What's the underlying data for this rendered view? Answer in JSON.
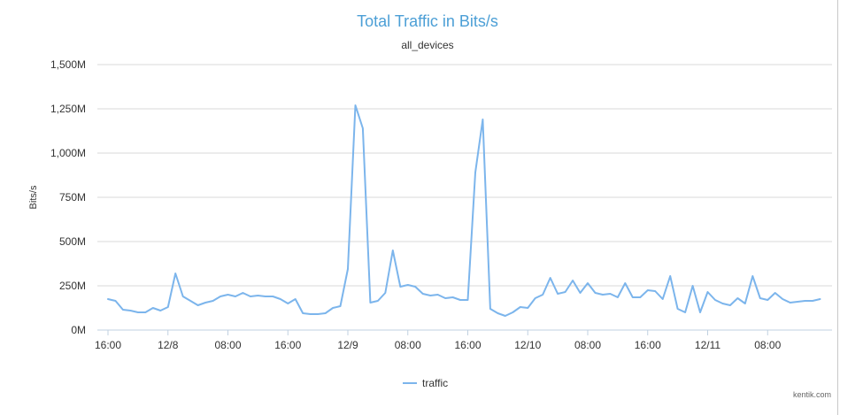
{
  "chart_data": {
    "type": "line",
    "title": "Total Traffic in Bits/s",
    "subtitle": "all_devices",
    "xlabel": "",
    "ylabel": "Bits/s",
    "ylim": [
      0,
      1500
    ],
    "yticks": [
      0,
      250,
      500,
      750,
      1000,
      1250,
      1500
    ],
    "ytick_labels": [
      "0M",
      "250M",
      "500M",
      "750M",
      "1,000M",
      "1,250M",
      "1,500M"
    ],
    "xlim": [
      16,
      112
    ],
    "xticks": [
      16,
      24,
      32,
      40,
      48,
      56,
      64,
      72,
      80,
      88,
      96,
      104
    ],
    "xtick_labels": [
      "16:00",
      "12/8",
      "08:00",
      "16:00",
      "12/9",
      "08:00",
      "16:00",
      "12/10",
      "08:00",
      "16:00",
      "12/11",
      "08:00"
    ],
    "grid": true,
    "legend": "bottom-center",
    "series": [
      {
        "name": "traffic",
        "color": "#7cb5ec",
        "x": [
          16,
          17,
          18,
          19,
          20,
          21,
          22,
          23,
          24,
          25,
          26,
          27,
          28,
          29,
          30,
          31,
          32,
          33,
          34,
          35,
          36,
          37,
          38,
          39,
          40,
          41,
          42,
          43,
          44,
          45,
          46,
          47,
          48,
          49,
          50,
          51,
          52,
          53,
          54,
          55,
          56,
          57,
          58,
          59,
          60,
          61,
          62,
          63,
          64,
          65,
          66,
          67,
          68,
          69,
          70,
          71,
          72,
          73,
          74,
          75,
          76,
          77,
          78,
          79,
          80,
          81,
          82,
          83,
          84,
          85,
          86,
          87,
          88,
          89,
          90,
          91,
          92,
          93,
          94,
          95,
          96,
          97,
          98,
          99,
          100,
          101,
          102,
          103,
          104,
          105,
          106,
          107,
          108,
          109,
          110,
          111
        ],
        "values": [
          175,
          165,
          115,
          110,
          100,
          100,
          125,
          110,
          130,
          320,
          190,
          165,
          140,
          155,
          165,
          190,
          200,
          190,
          210,
          190,
          195,
          190,
          190,
          175,
          150,
          175,
          95,
          90,
          90,
          95,
          125,
          135,
          345,
          1270,
          1140,
          155,
          165,
          210,
          450,
          245,
          255,
          245,
          205,
          195,
          200,
          180,
          185,
          170,
          170,
          890,
          1190,
          120,
          95,
          80,
          100,
          130,
          125,
          180,
          200,
          295,
          205,
          215,
          280,
          210,
          265,
          210,
          200,
          205,
          185,
          265,
          185,
          185,
          225,
          220,
          175,
          305,
          120,
          100,
          250,
          100,
          215,
          170,
          150,
          140,
          180,
          150,
          305,
          180,
          170,
          210,
          175,
          155,
          160,
          165,
          165,
          175
        ]
      }
    ]
  },
  "credit": "kentik.com"
}
